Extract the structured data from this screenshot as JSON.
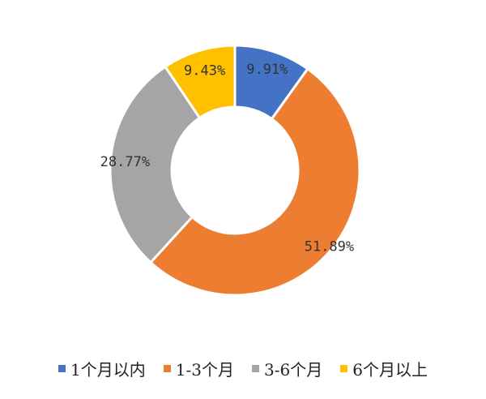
{
  "chart_data": {
    "type": "pie",
    "style": "donut",
    "categories": [
      "1个月以内",
      "1-3个月",
      "3-6个月",
      "6个月以上"
    ],
    "values": [
      9.91,
      51.89,
      28.77,
      9.43
    ],
    "data_labels": [
      "9.91%",
      "51.89%",
      "28.77%",
      "9.43%"
    ],
    "colors": [
      "#4472C4",
      "#ED7D31",
      "#A5A5A5",
      "#FFC000"
    ],
    "legend_position": "bottom",
    "start_angle": "12 o'clock",
    "direction": "clockwise"
  },
  "legend": {
    "items": [
      {
        "label": "1个月以内",
        "color": "#4472C4"
      },
      {
        "label": "1-3个月",
        "color": "#ED7D31"
      },
      {
        "label": "3-6个月",
        "color": "#A5A5A5"
      },
      {
        "label": "6个月以上",
        "color": "#FFC000"
      }
    ]
  }
}
